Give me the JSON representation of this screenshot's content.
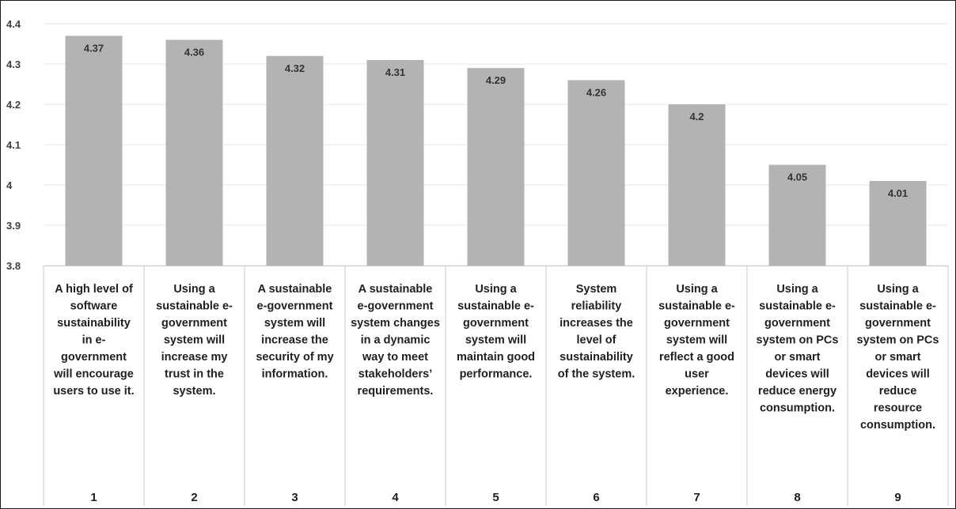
{
  "chart_data": {
    "type": "bar",
    "title": "",
    "xlabel": "",
    "ylabel": "",
    "ylim": [
      3.8,
      4.4
    ],
    "yticks": [
      "3.8",
      "3.9",
      "4",
      "4.1",
      "4.2",
      "4.3",
      "4.4"
    ],
    "grid": true,
    "colors": {
      "bar": "#b3b3b3",
      "grid": "#e6e6e6",
      "table_border": "#c9c9c9"
    },
    "categories": [
      "1",
      "2",
      "3",
      "4",
      "5",
      "6",
      "7",
      "8",
      "9"
    ],
    "values": [
      4.37,
      4.36,
      4.32,
      4.31,
      4.29,
      4.26,
      4.2,
      4.05,
      4.01
    ],
    "value_labels": [
      "4.37",
      "4.36",
      "4.32",
      "4.31",
      "4.29",
      "4.26",
      "4.2",
      "4.05",
      "4.01"
    ],
    "descriptions": [
      [
        "A high level of",
        "software",
        "sustainability",
        "in e-",
        "government",
        "will encourage",
        "users to use it."
      ],
      [
        "Using a",
        "sustainable e-",
        "government",
        "system will",
        "increase my",
        "trust in the",
        "system."
      ],
      [
        "A sustainable",
        "e-government",
        "system will",
        "increase the",
        "security of my",
        "information."
      ],
      [
        "A sustainable",
        "e-government",
        "system changes",
        "in a dynamic",
        "way to meet",
        "stakeholders’",
        "requirements."
      ],
      [
        "Using a",
        "sustainable e-",
        "government",
        "system will",
        "maintain good",
        "performance."
      ],
      [
        "System",
        "reliability",
        "increases the",
        "level of",
        "sustainability",
        "of the system."
      ],
      [
        "Using a",
        "sustainable e-",
        "government",
        "system will",
        "reflect a good",
        "user",
        "experience."
      ],
      [
        "Using a",
        "sustainable e-",
        "government",
        "system on PCs",
        "or smart",
        "devices will",
        "reduce energy",
        "consumption."
      ],
      [
        "Using a",
        "sustainable e-",
        "government",
        "system on PCs",
        "or smart",
        "devices will",
        "reduce",
        "resource",
        "consumption."
      ]
    ]
  }
}
